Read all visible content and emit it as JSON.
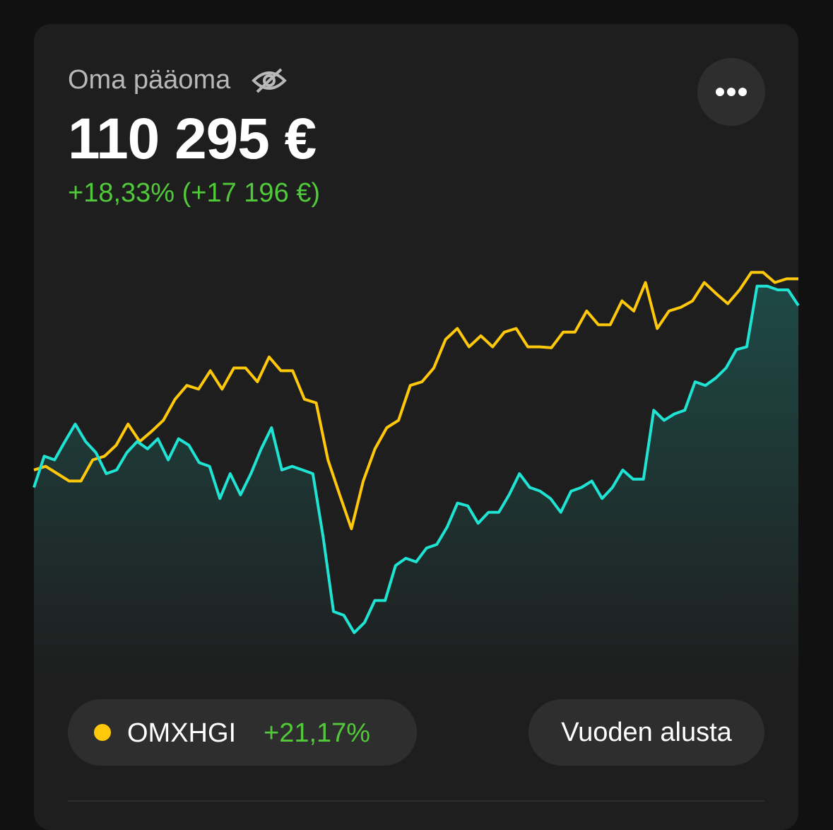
{
  "header": {
    "title": "Oma pääoma",
    "value": "110 295 €",
    "change": "+18,33% (+17 196 €)"
  },
  "chart_data": {
    "type": "line",
    "series": [
      {
        "color": "#1fe3d3",
        "values": [
          -1.5,
          1.9,
          1.5,
          3.5,
          5.4,
          3.5,
          2.3,
          0,
          0.4,
          2.3,
          3.5,
          2.7,
          3.8,
          1.5,
          3.8,
          3.1,
          1.2,
          0.8,
          -2.7,
          0,
          -2.3,
          0,
          2.7,
          5,
          0.4,
          0.8,
          0.4,
          0,
          -6.9,
          -15,
          -15.4,
          -17.3,
          -16.2,
          -13.8,
          -13.8,
          -10,
          -9.2,
          -9.6,
          -8.1,
          -7.7,
          -5.8,
          -3.2,
          -3.5,
          -5.4,
          -4.2,
          -4.2,
          -2.3,
          0,
          -1.5,
          -1.9,
          -2.7,
          -4.2,
          -1.9,
          -1.5,
          -0.8,
          -2.7,
          -1.5,
          0.4,
          -0.6,
          -0.6,
          6.9,
          5.8,
          6.5,
          6.9,
          10,
          9.6,
          10.4,
          11.5,
          13.5,
          13.8,
          20.4,
          20.4,
          20,
          20,
          18.3
        ]
      },
      {
        "name": "OMXHGI",
        "change_label": "+21,17%",
        "color": "#ffc80a",
        "values": [
          0.4,
          0.8,
          0,
          -0.8,
          -0.8,
          1.5,
          1.9,
          3.1,
          5.4,
          3.5,
          4.6,
          5.8,
          8.1,
          9.6,
          9.2,
          11.2,
          9.2,
          11.5,
          11.5,
          10,
          12.7,
          11.2,
          11.2,
          8.1,
          7.7,
          1.5,
          -2.3,
          -6,
          -0.8,
          2.7,
          5,
          5.8,
          9.6,
          10,
          11.5,
          14.6,
          15.8,
          13.8,
          15,
          13.8,
          15.4,
          15.8,
          13.8,
          13.8,
          13.7,
          15.4,
          15.4,
          17.7,
          16.2,
          16.2,
          18.8,
          17.7,
          20.8,
          15.8,
          17.7,
          18.1,
          18.8,
          20.8,
          19.6,
          18.5,
          20,
          21.9,
          21.9,
          20.8,
          21.2,
          21.2
        ]
      }
    ]
  },
  "controls": {
    "period": "Vuoden alusta"
  }
}
